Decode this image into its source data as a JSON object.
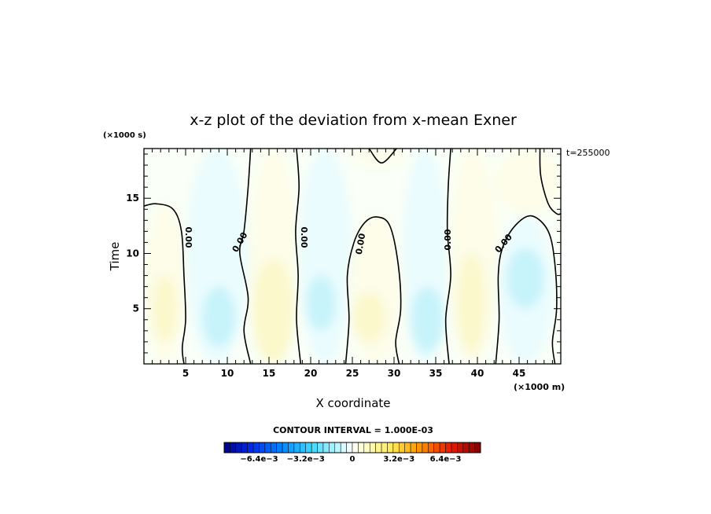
{
  "chart_data": {
    "type": "heatmap",
    "title": "x-z plot of the deviation from x-mean Exner",
    "xlabel": "X coordinate",
    "ylabel": "Time",
    "x_unit": "(×1000 m)",
    "y_unit": "(×1000 s)",
    "time_stamp": "t=255000",
    "xlim": [
      0,
      50
    ],
    "ylim": [
      0,
      19.5
    ],
    "x_ticks": [
      5,
      10,
      15,
      20,
      25,
      30,
      35,
      40,
      45
    ],
    "y_ticks": [
      5,
      10,
      15
    ],
    "contour_interval_text": "CONTOUR INTERVAL = 1.000E-03",
    "contour_labels": [
      "0.00",
      "0.00",
      "0.00",
      "0.00",
      "0.00",
      "0.00"
    ],
    "colorbar": {
      "min": -0.0088,
      "max": 0.0088,
      "n_levels": 44,
      "tick_labels": [
        "−6.4e−3",
        "−3.2e−3",
        "0",
        "3.2e−3",
        "6.4e−3"
      ],
      "tick_values": [
        -0.0064,
        -0.0032,
        0,
        0.0032,
        0.0064
      ]
    },
    "regions": [
      {
        "sign": "positive",
        "x_range": [
          0,
          5
        ],
        "y_range": [
          0,
          14.5
        ],
        "shade": "faint"
      },
      {
        "sign": "positive",
        "x_range": [
          1,
          4
        ],
        "y_range": [
          2,
          8
        ],
        "shade": "light"
      },
      {
        "sign": "negative",
        "x_range": [
          5,
          12.5
        ],
        "y_range": [
          0,
          19.5
        ],
        "shade": "faint"
      },
      {
        "sign": "negative",
        "x_range": [
          7,
          11
        ],
        "y_range": [
          1.5,
          7
        ],
        "shade": "light"
      },
      {
        "sign": "positive",
        "x_range": [
          12.5,
          18.5
        ],
        "y_range": [
          0,
          19.5
        ],
        "shade": "faint"
      },
      {
        "sign": "positive",
        "x_range": [
          13,
          18
        ],
        "y_range": [
          0,
          9.5
        ],
        "shade": "light"
      },
      {
        "sign": "negative",
        "x_range": [
          18.5,
          25
        ],
        "y_range": [
          0,
          19.5
        ],
        "shade": "faint"
      },
      {
        "sign": "negative",
        "x_range": [
          19.5,
          23
        ],
        "y_range": [
          3,
          8
        ],
        "shade": "light"
      },
      {
        "sign": "positive",
        "x_range": [
          24.5,
          31
        ],
        "y_range": [
          0,
          13.5
        ],
        "shade": "faint"
      },
      {
        "sign": "positive",
        "x_range": [
          25,
          29
        ],
        "y_range": [
          2,
          6.5
        ],
        "shade": "light"
      },
      {
        "sign": "negative",
        "x_range": [
          31,
          36.5
        ],
        "y_range": [
          0,
          19.5
        ],
        "shade": "faint"
      },
      {
        "sign": "negative",
        "x_range": [
          32,
          36
        ],
        "y_range": [
          1,
          7
        ],
        "shade": "light"
      },
      {
        "sign": "positive",
        "x_range": [
          36.5,
          42.5
        ],
        "y_range": [
          0,
          19.5
        ],
        "shade": "faint"
      },
      {
        "sign": "positive",
        "x_range": [
          37.5,
          41
        ],
        "y_range": [
          1,
          10
        ],
        "shade": "light"
      },
      {
        "sign": "negative",
        "x_range": [
          42.5,
          49
        ],
        "y_range": [
          0,
          13.5
        ],
        "shade": "faint"
      },
      {
        "sign": "negative",
        "x_range": [
          43.5,
          48
        ],
        "y_range": [
          5,
          10.5
        ],
        "shade": "light"
      },
      {
        "sign": "positive",
        "x_range": [
          42,
          50
        ],
        "y_range": [
          13.5,
          19.5
        ],
        "shade": "faint"
      },
      {
        "sign": "positive",
        "x_range": [
          25,
          31
        ],
        "y_range": [
          18,
          19.5
        ],
        "shade": "faint"
      }
    ],
    "zero_contours": [
      [
        [
          0,
          14.3
        ],
        [
          1.5,
          14.5
        ],
        [
          3.5,
          14
        ],
        [
          4.5,
          12
        ],
        [
          4.8,
          8
        ],
        [
          5,
          4
        ],
        [
          4.6,
          1.5
        ],
        [
          4.8,
          0
        ]
      ],
      [
        [
          12.8,
          19.5
        ],
        [
          12.5,
          16
        ],
        [
          12,
          12
        ],
        [
          11.5,
          10
        ],
        [
          12.5,
          6
        ],
        [
          12,
          3
        ],
        [
          12.8,
          0
        ]
      ],
      [
        [
          18.3,
          19.5
        ],
        [
          18.6,
          16
        ],
        [
          18.2,
          12
        ],
        [
          18.5,
          8
        ],
        [
          18.3,
          4
        ],
        [
          18.8,
          0
        ]
      ],
      [
        [
          24.2,
          0
        ],
        [
          24.6,
          4
        ],
        [
          24.4,
          8
        ],
        [
          25.2,
          11
        ],
        [
          26.5,
          12.8
        ],
        [
          28,
          13.3
        ],
        [
          29.5,
          12.5
        ],
        [
          30.5,
          9
        ],
        [
          30.8,
          5
        ],
        [
          30.2,
          2
        ],
        [
          30.6,
          0
        ]
      ],
      [
        [
          36.8,
          19.5
        ],
        [
          36.5,
          16
        ],
        [
          36.4,
          12
        ],
        [
          36.8,
          8
        ],
        [
          36.2,
          4
        ],
        [
          36.6,
          0
        ]
      ],
      [
        [
          42.2,
          0
        ],
        [
          42.6,
          4
        ],
        [
          42.5,
          8
        ],
        [
          43,
          10.5
        ],
        [
          44.5,
          12.5
        ],
        [
          46.5,
          13.4
        ],
        [
          48.5,
          12
        ],
        [
          49.3,
          9
        ],
        [
          49.5,
          5
        ],
        [
          49,
          2
        ],
        [
          49.3,
          0
        ]
      ],
      [
        [
          27,
          19.5
        ],
        [
          28.5,
          18.2
        ],
        [
          30.3,
          19.5
        ]
      ],
      [
        [
          47.5,
          19.5
        ],
        [
          47.6,
          17
        ],
        [
          48.5,
          14.5
        ],
        [
          49.5,
          13.6
        ],
        [
          50,
          13.6
        ]
      ]
    ]
  }
}
